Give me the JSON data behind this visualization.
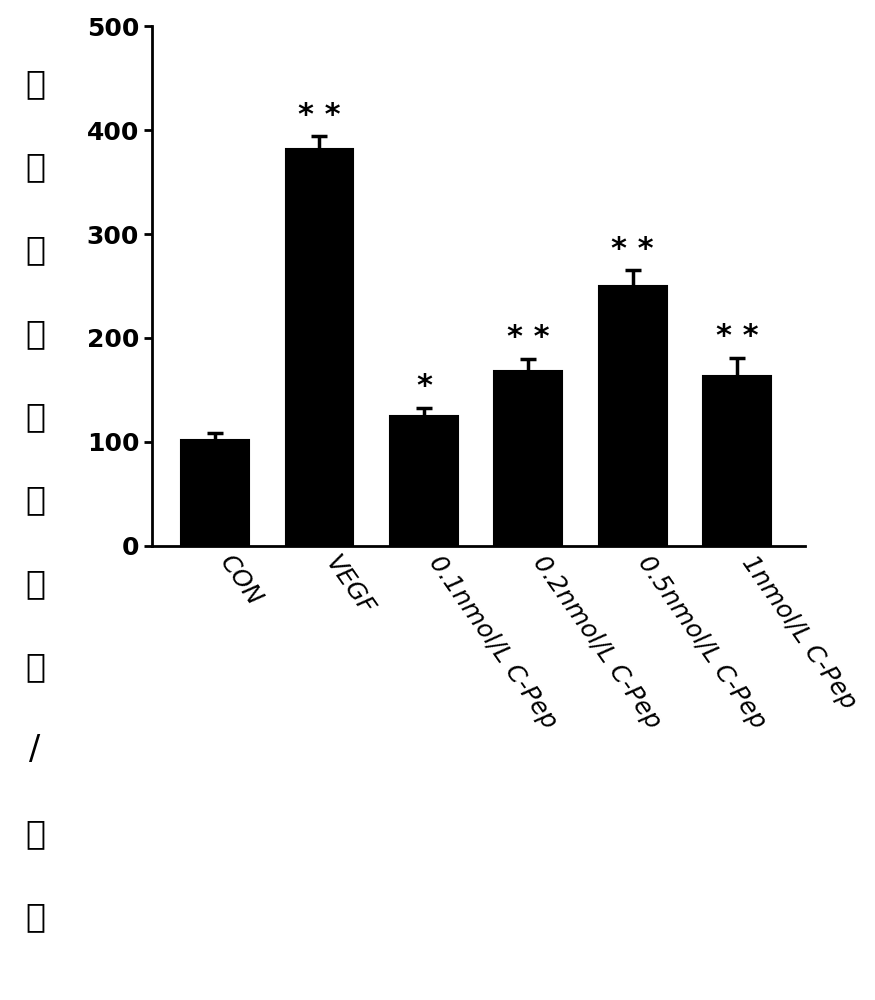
{
  "categories": [
    "CON",
    "VEGF",
    "0.1nmol/L C-Pep",
    "0.2nmol/L C-Pep",
    "0.5nmol/L C-Pep",
    "1nmol/L C-Pep"
  ],
  "values": [
    102,
    382,
    125,
    168,
    250,
    163
  ],
  "errors": [
    7,
    12,
    8,
    12,
    15,
    18
  ],
  "bar_color": "#000000",
  "background_color": "#ffffff",
  "ylabel": "迁移的细胞的数量/视野",
  "ylim": [
    0,
    500
  ],
  "yticks": [
    0,
    100,
    200,
    300,
    400,
    500
  ],
  "significance": [
    "",
    "**",
    "*",
    "**",
    "**",
    "**"
  ],
  "ylabel_fontsize": 24,
  "tick_fontsize": 18,
  "sig_fontsize": 22,
  "bar_width": 0.65,
  "xtick_rotation": -55
}
